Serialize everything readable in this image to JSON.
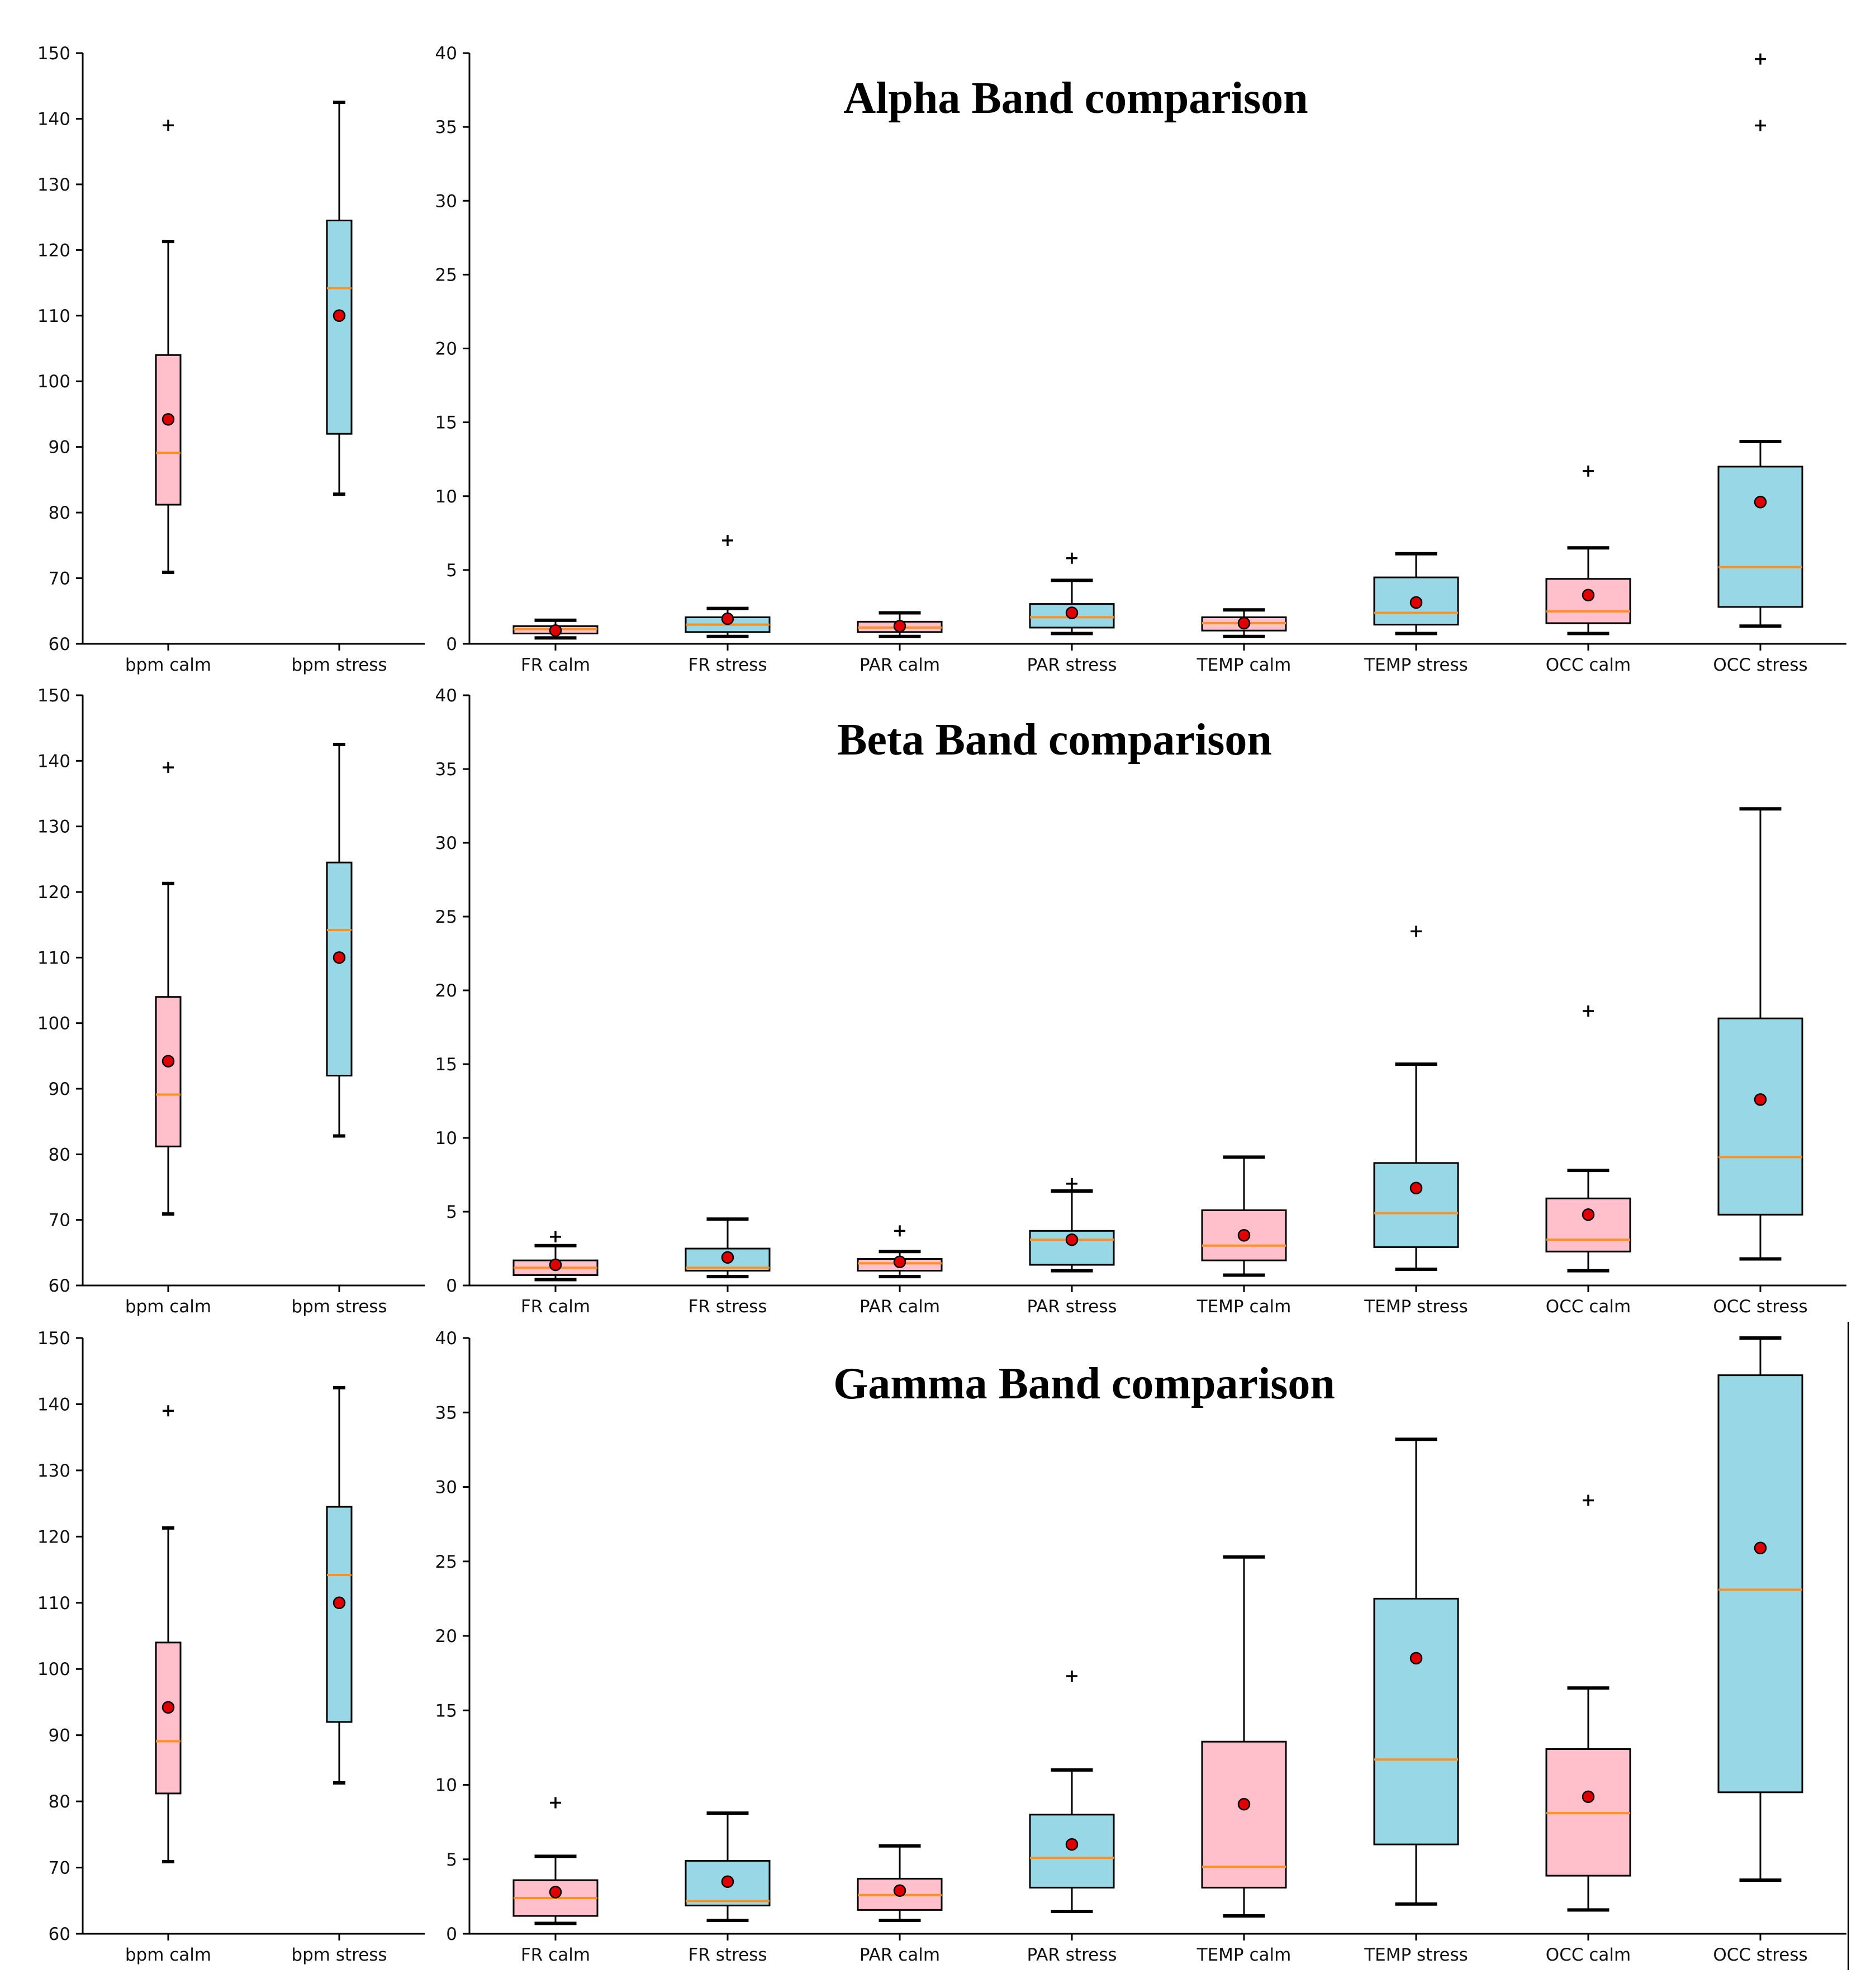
{
  "colors": {
    "calm": "#ffc0cb",
    "stress": "#97d7e6",
    "median": "#ff9020",
    "mean": "#e00000",
    "ink": "#000000"
  },
  "chart_data": [
    {
      "type": "box",
      "id": "alpha-bpm",
      "title": "",
      "ylim": [
        60,
        150
      ],
      "yticks": [
        60,
        70,
        80,
        90,
        100,
        110,
        120,
        130,
        140,
        150
      ],
      "categories": [
        "bpm calm",
        "bpm stress"
      ],
      "boxes": [
        {
          "label": "bpm calm",
          "group": "calm",
          "q1": 81.2,
          "median": 89.1,
          "q3": 104,
          "whisker_low": 70.9,
          "whisker_high": 121.3,
          "mean": 94.2,
          "outliers": [
            139
          ]
        },
        {
          "label": "bpm stress",
          "group": "stress",
          "q1": 92,
          "median": 114.2,
          "q3": 124.5,
          "whisker_low": 82.8,
          "whisker_high": 142.5,
          "mean": 110,
          "outliers": []
        }
      ]
    },
    {
      "type": "box",
      "id": "alpha-band",
      "title": "Alpha Band comparison",
      "ylim": [
        0,
        40
      ],
      "yticks": [
        0,
        5,
        10,
        15,
        20,
        25,
        30,
        35,
        40
      ],
      "categories": [
        "FR calm",
        "FR stress",
        "PAR calm",
        "PAR stress",
        "TEMP calm",
        "TEMP stress",
        "OCC calm",
        "OCC stress"
      ],
      "boxes": [
        {
          "label": "FR calm",
          "group": "calm",
          "q1": 0.7,
          "median": 1.0,
          "q3": 1.2,
          "whisker_low": 0.4,
          "whisker_high": 1.6,
          "mean": 0.9,
          "outliers": []
        },
        {
          "label": "FR stress",
          "group": "stress",
          "q1": 0.8,
          "median": 1.3,
          "q3": 1.8,
          "whisker_low": 0.5,
          "whisker_high": 2.4,
          "mean": 1.7,
          "outliers": [
            7.0
          ]
        },
        {
          "label": "PAR calm",
          "group": "calm",
          "q1": 0.8,
          "median": 1.1,
          "q3": 1.5,
          "whisker_low": 0.5,
          "whisker_high": 2.1,
          "mean": 1.2,
          "outliers": []
        },
        {
          "label": "PAR stress",
          "group": "stress",
          "q1": 1.1,
          "median": 1.8,
          "q3": 2.7,
          "whisker_low": 0.7,
          "whisker_high": 4.3,
          "mean": 2.1,
          "outliers": [
            5.8
          ]
        },
        {
          "label": "TEMP calm",
          "group": "calm",
          "q1": 0.9,
          "median": 1.4,
          "q3": 1.8,
          "whisker_low": 0.5,
          "whisker_high": 2.3,
          "mean": 1.4,
          "outliers": []
        },
        {
          "label": "TEMP stress",
          "group": "stress",
          "q1": 1.3,
          "median": 2.1,
          "q3": 4.5,
          "whisker_low": 0.7,
          "whisker_high": 6.1,
          "mean": 2.8,
          "outliers": []
        },
        {
          "label": "OCC calm",
          "group": "calm",
          "q1": 1.4,
          "median": 2.2,
          "q3": 4.4,
          "whisker_low": 0.7,
          "whisker_high": 6.5,
          "mean": 3.3,
          "outliers": [
            11.7
          ]
        },
        {
          "label": "OCC stress",
          "group": "stress",
          "q1": 2.5,
          "median": 5.2,
          "q3": 12.0,
          "whisker_low": 1.2,
          "whisker_high": 13.7,
          "mean": 9.6,
          "outliers": [
            35.1,
            39.6
          ]
        }
      ]
    },
    {
      "type": "box",
      "id": "beta-bpm",
      "title": "",
      "ylim": [
        60,
        150
      ],
      "yticks": [
        60,
        70,
        80,
        90,
        100,
        110,
        120,
        130,
        140,
        150
      ],
      "categories": [
        "bpm calm",
        "bpm stress"
      ],
      "boxes": [
        {
          "label": "bpm calm",
          "group": "calm",
          "q1": 81.2,
          "median": 89.1,
          "q3": 104,
          "whisker_low": 70.9,
          "whisker_high": 121.3,
          "mean": 94.2,
          "outliers": [
            139
          ]
        },
        {
          "label": "bpm stress",
          "group": "stress",
          "q1": 92,
          "median": 114.2,
          "q3": 124.5,
          "whisker_low": 82.8,
          "whisker_high": 142.5,
          "mean": 110,
          "outliers": []
        }
      ]
    },
    {
      "type": "box",
      "id": "beta-band",
      "title": "Beta Band comparison",
      "ylim": [
        0,
        40
      ],
      "yticks": [
        0,
        5,
        10,
        15,
        20,
        25,
        30,
        35,
        40
      ],
      "categories": [
        "FR calm",
        "FR stress",
        "PAR calm",
        "PAR stress",
        "TEMP calm",
        "TEMP stress",
        "OCC calm",
        "OCC stress"
      ],
      "boxes": [
        {
          "label": "FR calm",
          "group": "calm",
          "q1": 0.7,
          "median": 1.2,
          "q3": 1.7,
          "whisker_low": 0.4,
          "whisker_high": 2.7,
          "mean": 1.4,
          "outliers": [
            3.3
          ]
        },
        {
          "label": "FR stress",
          "group": "stress",
          "q1": 1.0,
          "median": 1.2,
          "q3": 2.5,
          "whisker_low": 0.6,
          "whisker_high": 4.5,
          "mean": 1.9,
          "outliers": []
        },
        {
          "label": "PAR calm",
          "group": "calm",
          "q1": 1.0,
          "median": 1.5,
          "q3": 1.8,
          "whisker_low": 0.6,
          "whisker_high": 2.3,
          "mean": 1.6,
          "outliers": [
            3.7
          ]
        },
        {
          "label": "PAR stress",
          "group": "stress",
          "q1": 1.4,
          "median": 3.1,
          "q3": 3.7,
          "whisker_low": 1.0,
          "whisker_high": 6.4,
          "mean": 3.1,
          "outliers": [
            6.9
          ]
        },
        {
          "label": "TEMP calm",
          "group": "calm",
          "q1": 1.7,
          "median": 2.7,
          "q3": 5.1,
          "whisker_low": 0.7,
          "whisker_high": 8.7,
          "mean": 3.4,
          "outliers": []
        },
        {
          "label": "TEMP stress",
          "group": "stress",
          "q1": 2.6,
          "median": 4.9,
          "q3": 8.3,
          "whisker_low": 1.1,
          "whisker_high": 15.0,
          "mean": 6.6,
          "outliers": [
            24.0
          ]
        },
        {
          "label": "OCC calm",
          "group": "calm",
          "q1": 2.3,
          "median": 3.1,
          "q3": 5.9,
          "whisker_low": 1.0,
          "whisker_high": 7.8,
          "mean": 4.8,
          "outliers": [
            18.6
          ]
        },
        {
          "label": "OCC stress",
          "group": "stress",
          "q1": 4.8,
          "median": 8.7,
          "q3": 18.1,
          "whisker_low": 1.8,
          "whisker_high": 32.3,
          "mean": 12.6,
          "outliers": []
        }
      ]
    },
    {
      "type": "box",
      "id": "gamma-bpm",
      "title": "",
      "ylim": [
        60,
        150
      ],
      "yticks": [
        60,
        70,
        80,
        90,
        100,
        110,
        120,
        130,
        140,
        150
      ],
      "categories": [
        "bpm calm",
        "bpm stress"
      ],
      "boxes": [
        {
          "label": "bpm calm",
          "group": "calm",
          "q1": 81.2,
          "median": 89.1,
          "q3": 104,
          "whisker_low": 70.9,
          "whisker_high": 121.3,
          "mean": 94.2,
          "outliers": [
            139
          ]
        },
        {
          "label": "bpm stress",
          "group": "stress",
          "q1": 92,
          "median": 114.2,
          "q3": 124.5,
          "whisker_low": 82.8,
          "whisker_high": 142.5,
          "mean": 110,
          "outliers": []
        }
      ]
    },
    {
      "type": "box",
      "id": "gamma-band",
      "title": "Gamma Band comparison",
      "ylim": [
        0,
        40
      ],
      "yticks": [
        0,
        5,
        10,
        15,
        20,
        25,
        30,
        35,
        40
      ],
      "categories": [
        "FR calm",
        "FR stress",
        "PAR calm",
        "PAR stress",
        "TEMP calm",
        "TEMP stress",
        "OCC calm",
        "OCC stress"
      ],
      "boxes": [
        {
          "label": "FR calm",
          "group": "calm",
          "q1": 1.2,
          "median": 2.4,
          "q3": 3.6,
          "whisker_low": 0.7,
          "whisker_high": 5.2,
          "mean": 2.8,
          "outliers": [
            8.8
          ]
        },
        {
          "label": "FR stress",
          "group": "stress",
          "q1": 1.9,
          "median": 2.2,
          "q3": 4.9,
          "whisker_low": 0.9,
          "whisker_high": 8.1,
          "mean": 3.5,
          "outliers": []
        },
        {
          "label": "PAR calm",
          "group": "calm",
          "q1": 1.6,
          "median": 2.6,
          "q3": 3.7,
          "whisker_low": 0.9,
          "whisker_high": 5.9,
          "mean": 2.9,
          "outliers": []
        },
        {
          "label": "PAR stress",
          "group": "stress",
          "q1": 3.1,
          "median": 5.1,
          "q3": 8.0,
          "whisker_low": 1.5,
          "whisker_high": 11.0,
          "mean": 6.0,
          "outliers": [
            17.3
          ]
        },
        {
          "label": "TEMP calm",
          "group": "calm",
          "q1": 3.1,
          "median": 4.5,
          "q3": 12.9,
          "whisker_low": 1.2,
          "whisker_high": 25.3,
          "mean": 8.7,
          "outliers": []
        },
        {
          "label": "TEMP stress",
          "group": "stress",
          "q1": 6.0,
          "median": 11.7,
          "q3": 22.5,
          "whisker_low": 2.0,
          "whisker_high": 33.2,
          "mean": 18.5,
          "outliers": []
        },
        {
          "label": "OCC calm",
          "group": "calm",
          "q1": 3.9,
          "median": 8.1,
          "q3": 12.4,
          "whisker_low": 1.6,
          "whisker_high": 16.5,
          "mean": 9.2,
          "outliers": [
            29.1
          ]
        },
        {
          "label": "OCC stress",
          "group": "stress",
          "q1": 9.5,
          "median": 23.1,
          "q3": 37.5,
          "whisker_low": 3.6,
          "whisker_high": 40,
          "mean": 25.9,
          "outliers": []
        }
      ]
    }
  ]
}
